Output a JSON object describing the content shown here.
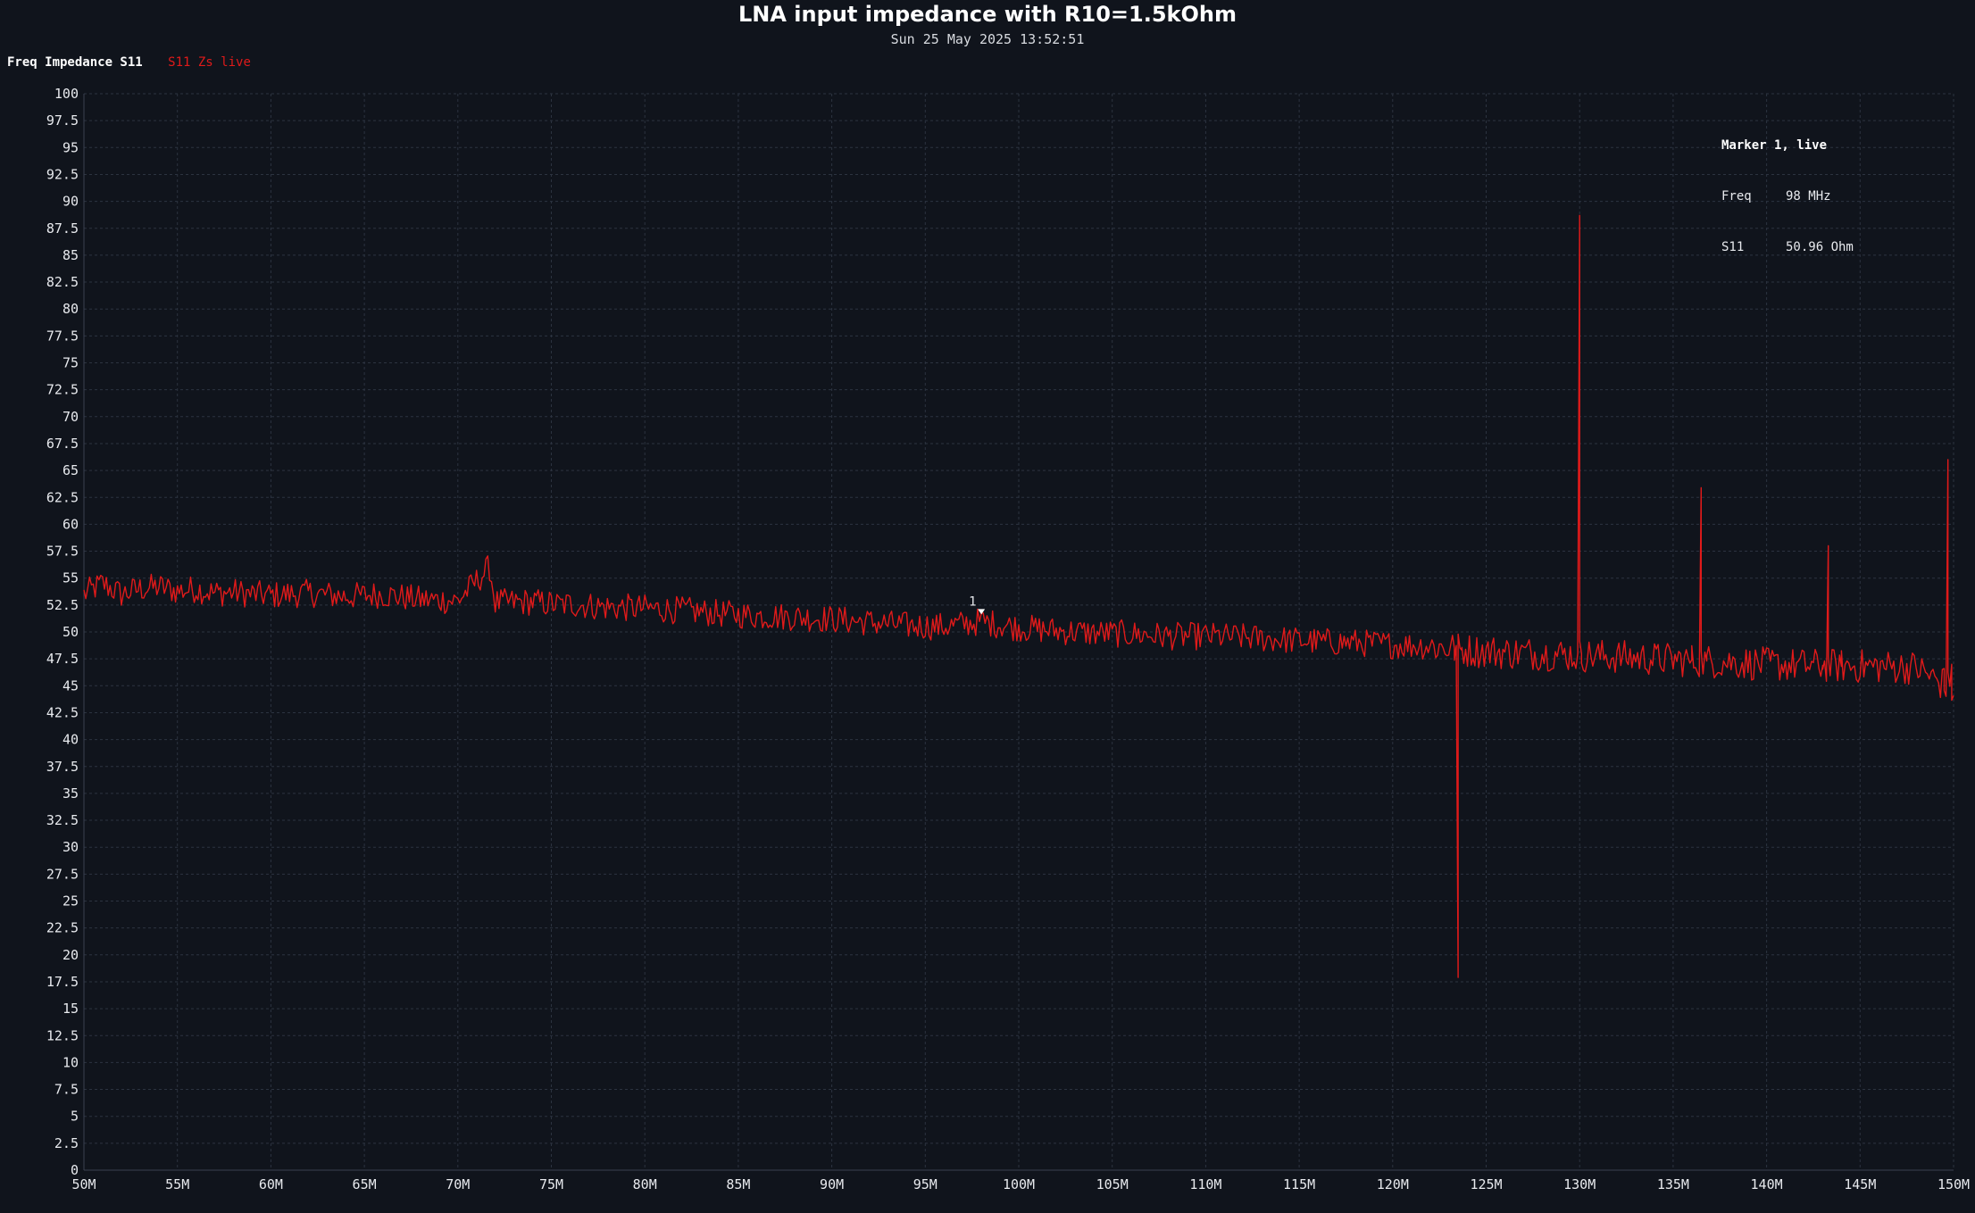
{
  "chart_data": {
    "type": "line",
    "title": "LNA input impedance with R10=1.5kOhm",
    "subtitle": "Sun 25 May 2025 13:52:51",
    "legend_title": "Freq Impedance S11",
    "xlabel": "",
    "ylabel": "",
    "x_unit": "MHz",
    "xlim": [
      50,
      150
    ],
    "ylim": [
      0,
      100
    ],
    "x_ticks": [
      {
        "value": 50,
        "label": "50M"
      },
      {
        "value": 55,
        "label": "55M"
      },
      {
        "value": 60,
        "label": "60M"
      },
      {
        "value": 65,
        "label": "65M"
      },
      {
        "value": 70,
        "label": "70M"
      },
      {
        "value": 75,
        "label": "75M"
      },
      {
        "value": 80,
        "label": "80M"
      },
      {
        "value": 85,
        "label": "85M"
      },
      {
        "value": 90,
        "label": "90M"
      },
      {
        "value": 95,
        "label": "95M"
      },
      {
        "value": 100,
        "label": "100M"
      },
      {
        "value": 105,
        "label": "105M"
      },
      {
        "value": 110,
        "label": "110M"
      },
      {
        "value": 115,
        "label": "115M"
      },
      {
        "value": 120,
        "label": "120M"
      },
      {
        "value": 125,
        "label": "125M"
      },
      {
        "value": 130,
        "label": "130M"
      },
      {
        "value": 135,
        "label": "135M"
      },
      {
        "value": 140,
        "label": "140M"
      },
      {
        "value": 145,
        "label": "145M"
      },
      {
        "value": 150,
        "label": "150M"
      }
    ],
    "y_ticks": [
      {
        "value": 0,
        "label": "0"
      },
      {
        "value": 2.5,
        "label": "2.5"
      },
      {
        "value": 5,
        "label": "5"
      },
      {
        "value": 7.5,
        "label": "7.5"
      },
      {
        "value": 10,
        "label": "10"
      },
      {
        "value": 12.5,
        "label": "12.5"
      },
      {
        "value": 15,
        "label": "15"
      },
      {
        "value": 17.5,
        "label": "17.5"
      },
      {
        "value": 20,
        "label": "20"
      },
      {
        "value": 22.5,
        "label": "22.5"
      },
      {
        "value": 25,
        "label": "25"
      },
      {
        "value": 27.5,
        "label": "27.5"
      },
      {
        "value": 30,
        "label": "30"
      },
      {
        "value": 32.5,
        "label": "32.5"
      },
      {
        "value": 35,
        "label": "35"
      },
      {
        "value": 37.5,
        "label": "37.5"
      },
      {
        "value": 40,
        "label": "40"
      },
      {
        "value": 42.5,
        "label": "42.5"
      },
      {
        "value": 45,
        "label": "45"
      },
      {
        "value": 47.5,
        "label": "47.5"
      },
      {
        "value": 50,
        "label": "50"
      },
      {
        "value": 52.5,
        "label": "52.5"
      },
      {
        "value": 55,
        "label": "55"
      },
      {
        "value": 57.5,
        "label": "57.5"
      },
      {
        "value": 60,
        "label": "60"
      },
      {
        "value": 62.5,
        "label": "62.5"
      },
      {
        "value": 65,
        "label": "65"
      },
      {
        "value": 67.5,
        "label": "67.5"
      },
      {
        "value": 70,
        "label": "70"
      },
      {
        "value": 72.5,
        "label": "72.5"
      },
      {
        "value": 75,
        "label": "75"
      },
      {
        "value": 77.5,
        "label": "77.5"
      },
      {
        "value": 80,
        "label": "80"
      },
      {
        "value": 82.5,
        "label": "82.5"
      },
      {
        "value": 85,
        "label": "85"
      },
      {
        "value": 87.5,
        "label": "87.5"
      },
      {
        "value": 90,
        "label": "90"
      },
      {
        "value": 92.5,
        "label": "92.5"
      },
      {
        "value": 95,
        "label": "95"
      },
      {
        "value": 97.5,
        "label": "97.5"
      },
      {
        "value": 100,
        "label": "100"
      }
    ],
    "grid": true,
    "legend_position": "top-left",
    "series": [
      {
        "name": "S11 Zs live",
        "color": "#e01a1a",
        "x": [
          50,
          51,
          52,
          53,
          54,
          55,
          56,
          57,
          58,
          59,
          60,
          62,
          64,
          66,
          68,
          70,
          71.7,
          72,
          74,
          75.5,
          76,
          78,
          80,
          82,
          84,
          85,
          86,
          88,
          90,
          92,
          94,
          96,
          98,
          100,
          102,
          104,
          106,
          108,
          110,
          112,
          114,
          116,
          118,
          120,
          122,
          123.3,
          123.5,
          123.7,
          124,
          126,
          128,
          129.9,
          130.0,
          130.1,
          130.4,
          132,
          134,
          136,
          136.5,
          136.8,
          138,
          140,
          142,
          143,
          143.3,
          144,
          146,
          148,
          149.5,
          149.7,
          149.9,
          150
        ],
        "values": [
          53.5,
          54.5,
          53.5,
          54.0,
          54.2,
          53.8,
          54.0,
          53.6,
          53.7,
          53.5,
          53.4,
          53.6,
          53.3,
          53.5,
          53.0,
          52.9,
          56.0,
          52.7,
          52.8,
          52.5,
          52.6,
          52.3,
          52.2,
          52.0,
          51.7,
          51.6,
          51.5,
          51.4,
          51.2,
          50.9,
          50.6,
          50.5,
          50.96,
          50.4,
          50.1,
          49.9,
          49.8,
          49.6,
          49.6,
          49.5,
          49.3,
          49.1,
          49.0,
          48.8,
          48.7,
          48.5,
          17.9,
          48.3,
          48.3,
          48.1,
          48.0,
          48.0,
          88.7,
          48.0,
          47.8,
          47.7,
          47.5,
          47.4,
          63.4,
          47.3,
          47.2,
          47.0,
          46.9,
          46.9,
          58.0,
          46.8,
          46.8,
          46.7,
          46.6,
          66.0,
          47.0,
          44.5
        ]
      }
    ],
    "markers": [
      {
        "id": "1",
        "x": 98,
        "y": 50.96
      }
    ]
  },
  "marker_readout": {
    "title": "Marker 1, live",
    "rows": [
      {
        "key": "Freq",
        "value": "98 MHz"
      },
      {
        "key": "S11",
        "value": "50.96 Ohm"
      }
    ]
  }
}
